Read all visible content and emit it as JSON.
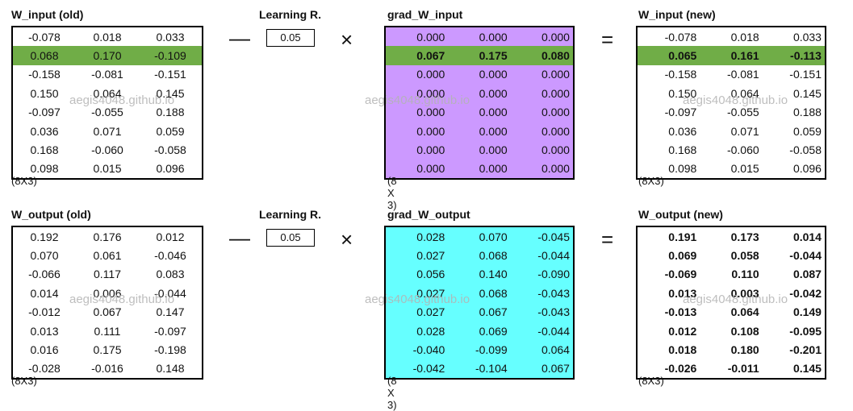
{
  "watermark": "aegis4048.github.io",
  "operators": {
    "minus": "—",
    "times": "×",
    "equals": "="
  },
  "colors": {
    "highlight_row": "#70ad47",
    "grad_input_bg": "#cc99ff",
    "grad_output_bg": "#66ffff"
  },
  "top": {
    "old_title": "W_input (old)",
    "old_dims": "(8X3)",
    "old_rows": [
      [
        "-0.078",
        "0.018",
        "0.033"
      ],
      [
        "0.068",
        "0.170",
        "-0.109"
      ],
      [
        "-0.158",
        "-0.081",
        "-0.151"
      ],
      [
        "0.150",
        "0.064",
        "0.145"
      ],
      [
        "-0.097",
        "-0.055",
        "0.188"
      ],
      [
        "0.036",
        "0.071",
        "0.059"
      ],
      [
        "0.168",
        "-0.060",
        "-0.058"
      ],
      [
        "0.098",
        "0.015",
        "0.096"
      ]
    ],
    "lr_title": "Learning R.",
    "lr_value": "0.05",
    "grad_title": "grad_W_input",
    "grad_dims": "(8 X 3)",
    "grad_rows": [
      [
        "0.000",
        "0.000",
        "0.000"
      ],
      [
        "0.067",
        "0.175",
        "0.080"
      ],
      [
        "0.000",
        "0.000",
        "0.000"
      ],
      [
        "0.000",
        "0.000",
        "0.000"
      ],
      [
        "0.000",
        "0.000",
        "0.000"
      ],
      [
        "0.000",
        "0.000",
        "0.000"
      ],
      [
        "0.000",
        "0.000",
        "0.000"
      ],
      [
        "0.000",
        "0.000",
        "0.000"
      ]
    ],
    "new_title": "W_input (new)",
    "new_dims": "(8X3)",
    "new_rows": [
      [
        "-0.078",
        "0.018",
        "0.033"
      ],
      [
        "0.065",
        "0.161",
        "-0.113"
      ],
      [
        "-0.158",
        "-0.081",
        "-0.151"
      ],
      [
        "0.150",
        "0.064",
        "0.145"
      ],
      [
        "-0.097",
        "-0.055",
        "0.188"
      ],
      [
        "0.036",
        "0.071",
        "0.059"
      ],
      [
        "0.168",
        "-0.060",
        "-0.058"
      ],
      [
        "0.098",
        "0.015",
        "0.096"
      ]
    ]
  },
  "bottom": {
    "old_title": "W_output (old)",
    "old_dims": "(8X3)",
    "old_rows": [
      [
        "0.192",
        "0.176",
        "0.012"
      ],
      [
        "0.070",
        "0.061",
        "-0.046"
      ],
      [
        "-0.066",
        "0.117",
        "0.083"
      ],
      [
        "0.014",
        "0.006",
        "-0.044"
      ],
      [
        "-0.012",
        "0.067",
        "0.147"
      ],
      [
        "0.013",
        "0.111",
        "-0.097"
      ],
      [
        "0.016",
        "0.175",
        "-0.198"
      ],
      [
        "-0.028",
        "-0.016",
        "0.148"
      ]
    ],
    "lr_title": "Learning R.",
    "lr_value": "0.05",
    "grad_title": "grad_W_output",
    "grad_dims": "(8 X 3)",
    "grad_rows": [
      [
        "0.028",
        "0.070",
        "-0.045"
      ],
      [
        "0.027",
        "0.068",
        "-0.044"
      ],
      [
        "0.056",
        "0.140",
        "-0.090"
      ],
      [
        "0.027",
        "0.068",
        "-0.043"
      ],
      [
        "0.027",
        "0.067",
        "-0.043"
      ],
      [
        "0.028",
        "0.069",
        "-0.044"
      ],
      [
        "-0.040",
        "-0.099",
        "0.064"
      ],
      [
        "-0.042",
        "-0.104",
        "0.067"
      ]
    ],
    "new_title": "W_output (new)",
    "new_dims": "(8X3)",
    "new_rows": [
      [
        "0.191",
        "0.173",
        "0.014"
      ],
      [
        "0.069",
        "0.058",
        "-0.044"
      ],
      [
        "-0.069",
        "0.110",
        "0.087"
      ],
      [
        "0.013",
        "0.003",
        "-0.042"
      ],
      [
        "-0.013",
        "0.064",
        "0.149"
      ],
      [
        "0.012",
        "0.108",
        "-0.095"
      ],
      [
        "0.018",
        "0.180",
        "-0.201"
      ],
      [
        "-0.026",
        "-0.011",
        "0.145"
      ]
    ]
  }
}
